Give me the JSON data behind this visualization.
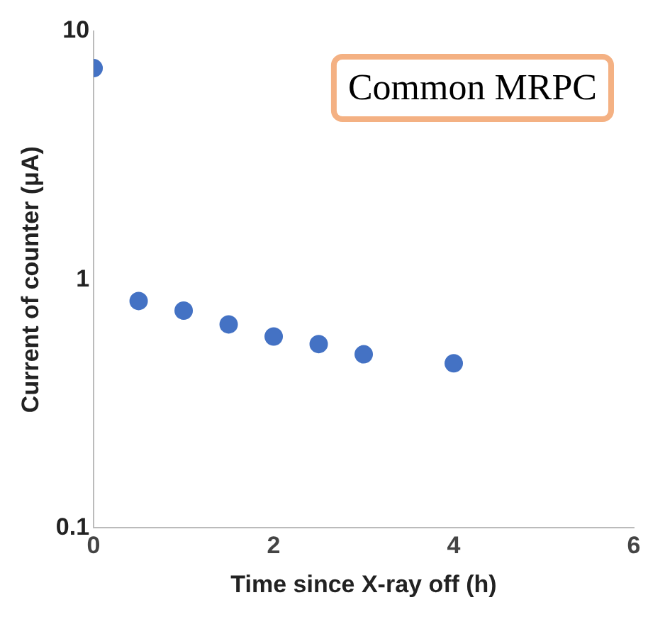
{
  "chart_data": {
    "type": "scatter",
    "xlabel": "Time since X-ray off (h)",
    "ylabel": "Current of counter (μA)",
    "annotations": [
      "Common MRPC"
    ],
    "x": [
      0,
      0.5,
      1,
      1.5,
      2,
      2.5,
      3,
      4
    ],
    "series": [
      {
        "color": "#4472c4",
        "values": [
          7.1,
          0.82,
          0.75,
          0.66,
          0.59,
          0.55,
          0.5,
          0.46
        ]
      }
    ],
    "xlim": [
      0,
      6
    ],
    "xticks": [
      0,
      2,
      4,
      6
    ],
    "ylim": [
      0.1,
      10
    ],
    "yticks": [
      0.1,
      1,
      10
    ],
    "log": "y",
    "grid": false,
    "legend": false,
    "marker": "circle"
  }
}
